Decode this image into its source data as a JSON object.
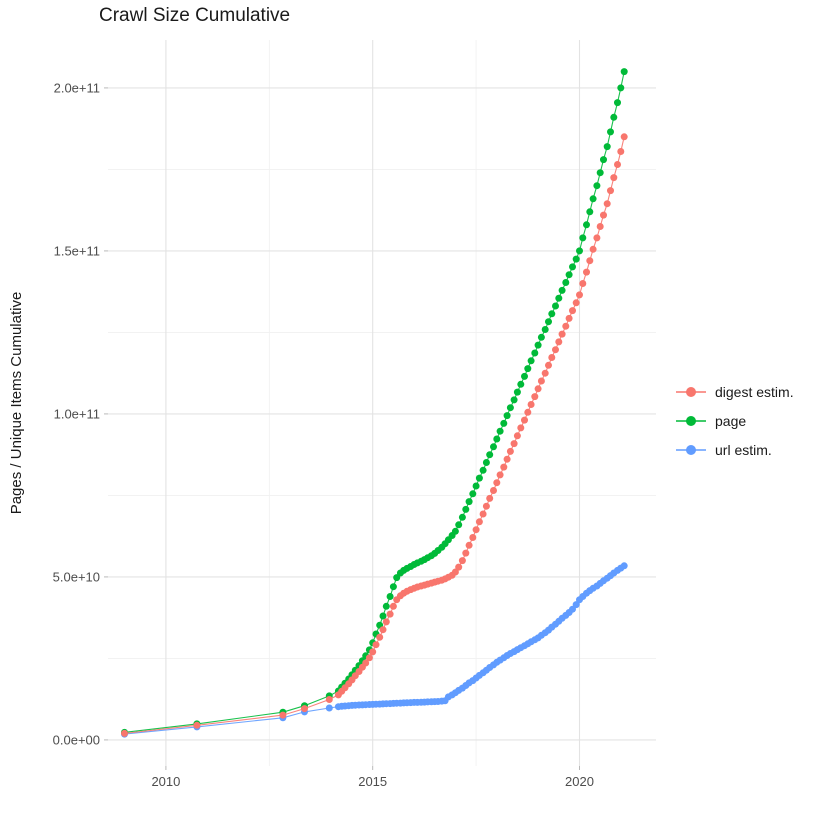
{
  "title": "Crawl Size Cumulative",
  "chart_data": {
    "type": "scatter",
    "title": "Crawl Size Cumulative",
    "xlabel": "",
    "ylabel": "Pages / Unique Items Cumulative",
    "value_unit": "billions (1e9) of pages / unique items",
    "grid": true,
    "legend_position": "right",
    "axis_range": {
      "x": [
        2008.6,
        2021.85
      ],
      "y_billions": [
        -8,
        214.7
      ]
    },
    "xlim": [
      2009,
      2021.08
    ],
    "ylim": [
      0,
      205000000000.0
    ],
    "x_ticks": [
      {
        "value": 2010,
        "label": "2010"
      },
      {
        "value": 2015,
        "label": "2015"
      },
      {
        "value": 2020,
        "label": "2020"
      }
    ],
    "x_minor_ticks": [
      2012.5,
      2017.5
    ],
    "y_ticks": [
      {
        "value": 0,
        "label": "0.0e+00"
      },
      {
        "value": 50,
        "label": "5.0e+10"
      },
      {
        "value": 100,
        "label": "1.0e+11"
      },
      {
        "value": 150,
        "label": "1.5e+11"
      },
      {
        "value": 200,
        "label": "2.0e+11"
      }
    ],
    "y_minor_ticks": [
      25,
      75,
      125,
      175
    ],
    "x": [
      2009.0,
      2010.75,
      2012.83,
      2013.35,
      2013.95,
      2014.17,
      2014.25,
      2014.33,
      2014.42,
      2014.5,
      2014.58,
      2014.67,
      2014.75,
      2014.83,
      2014.92,
      2015.0,
      2015.08,
      2015.17,
      2015.25,
      2015.33,
      2015.42,
      2015.5,
      2015.58,
      2015.67,
      2015.75,
      2015.83,
      2015.92,
      2016.0,
      2016.08,
      2016.17,
      2016.25,
      2016.33,
      2016.42,
      2016.5,
      2016.58,
      2016.67,
      2016.75,
      2016.83,
      2016.92,
      2017.0,
      2017.08,
      2017.17,
      2017.25,
      2017.33,
      2017.42,
      2017.5,
      2017.58,
      2017.67,
      2017.75,
      2017.83,
      2017.92,
      2018.0,
      2018.08,
      2018.17,
      2018.25,
      2018.33,
      2018.42,
      2018.5,
      2018.58,
      2018.67,
      2018.75,
      2018.83,
      2018.92,
      2019.0,
      2019.08,
      2019.17,
      2019.25,
      2019.33,
      2019.42,
      2019.5,
      2019.58,
      2019.67,
      2019.75,
      2019.83,
      2019.92,
      2020.0,
      2020.08,
      2020.17,
      2020.25,
      2020.33,
      2020.42,
      2020.5,
      2020.58,
      2020.67,
      2020.75,
      2020.83,
      2020.92,
      2021.0,
      2021.08
    ],
    "series": [
      {
        "name": "digest estim.",
        "color": "#F8766D",
        "values_billions": [
          2.0,
          4.5,
          7.6,
          9.6,
          12.4,
          13.8,
          14.9,
          16.0,
          17.2,
          18.4,
          19.7,
          21.0,
          22.3,
          23.6,
          25.2,
          27.0,
          29.2,
          31.5,
          33.8,
          36.2,
          38.6,
          41.0,
          43.0,
          44.2,
          45.0,
          45.6,
          46.1,
          46.5,
          46.9,
          47.2,
          47.5,
          47.8,
          48.1,
          48.4,
          48.7,
          49.0,
          49.4,
          49.9,
          50.5,
          51.5,
          53.0,
          55.0,
          57.3,
          59.7,
          62.1,
          64.5,
          66.9,
          69.3,
          71.7,
          74.1,
          76.5,
          78.9,
          81.3,
          83.7,
          86.1,
          88.5,
          90.9,
          93.3,
          95.7,
          98.1,
          100.5,
          102.9,
          105.3,
          107.7,
          110.1,
          112.5,
          114.9,
          117.3,
          119.7,
          122.1,
          124.5,
          126.9,
          129.3,
          131.7,
          134.1,
          136.5,
          140.0,
          143.5,
          147.0,
          150.5,
          154.0,
          157.5,
          161.0,
          164.5,
          168.5,
          172.5,
          176.5,
          180.5,
          185.0
        ]
      },
      {
        "name": "page",
        "color": "#00BA38",
        "values_billions": [
          2.3,
          4.9,
          8.5,
          10.5,
          13.5,
          15.0,
          16.2,
          17.4,
          18.7,
          20.0,
          21.4,
          22.8,
          24.3,
          25.8,
          27.6,
          29.8,
          32.5,
          35.2,
          38.0,
          41.0,
          44.0,
          47.0,
          49.8,
          51.2,
          52.0,
          52.6,
          53.2,
          53.8,
          54.3,
          54.8,
          55.3,
          55.9,
          56.5,
          57.2,
          58.1,
          59.1,
          60.2,
          61.4,
          62.7,
          64.0,
          66.0,
          68.3,
          70.7,
          73.1,
          75.5,
          77.9,
          80.3,
          82.7,
          85.1,
          87.5,
          89.9,
          92.3,
          94.7,
          97.1,
          99.5,
          101.9,
          104.3,
          106.7,
          109.1,
          111.5,
          113.9,
          116.3,
          118.7,
          121.1,
          123.5,
          125.9,
          128.3,
          130.7,
          133.1,
          135.5,
          137.9,
          140.3,
          142.7,
          145.1,
          147.5,
          150.0,
          154.0,
          158.0,
          162.0,
          166.0,
          170.0,
          174.0,
          178.0,
          182.0,
          186.5,
          191.0,
          195.5,
          200.0,
          205.0
        ]
      },
      {
        "name": "url estim.",
        "color": "#619CFF",
        "values_billions": [
          1.8,
          4.0,
          6.8,
          8.6,
          9.8,
          10.2,
          10.3,
          10.4,
          10.5,
          10.6,
          10.65,
          10.7,
          10.75,
          10.8,
          10.85,
          10.9,
          10.95,
          11.0,
          11.05,
          11.1,
          11.15,
          11.2,
          11.25,
          11.3,
          11.35,
          11.4,
          11.45,
          11.5,
          11.5,
          11.55,
          11.6,
          11.65,
          11.7,
          11.75,
          11.8,
          11.9,
          12.0,
          13.2,
          13.8,
          14.5,
          15.2,
          15.9,
          16.7,
          17.5,
          18.2,
          19.0,
          19.8,
          20.6,
          21.4,
          22.2,
          23.0,
          23.8,
          24.5,
          25.2,
          25.9,
          26.5,
          27.1,
          27.7,
          28.3,
          28.9,
          29.5,
          30.1,
          30.7,
          31.3,
          32.1,
          32.9,
          33.7,
          34.6,
          35.5,
          36.4,
          37.3,
          38.2,
          39.1,
          40.1,
          41.5,
          43.0,
          44.0,
          45.0,
          45.8,
          46.5,
          47.2,
          48.0,
          48.8,
          49.6,
          50.4,
          51.2,
          52.0,
          52.7,
          53.4
        ]
      }
    ]
  },
  "legend": {
    "items": [
      {
        "label": "digest estim.",
        "color": "#F8766D"
      },
      {
        "label": "page",
        "color": "#00BA38"
      },
      {
        "label": "url estim.",
        "color": "#619CFF"
      }
    ]
  }
}
